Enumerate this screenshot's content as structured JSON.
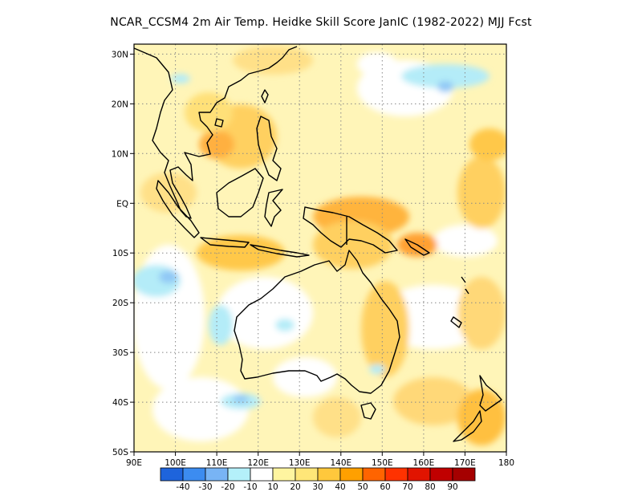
{
  "title": "NCAR_CCSM4  2m Air Temp. Heidke Skill Score JanIC (1982-2022) MJJ Fcst",
  "map": {
    "lon_range": [
      90,
      180
    ],
    "lat_range": [
      -50,
      32
    ],
    "lon_ticks": [
      "90E",
      "100E",
      "110E",
      "120E",
      "130E",
      "140E",
      "150E",
      "160E",
      "170E",
      "180"
    ],
    "lat_ticks": [
      "30N",
      "20N",
      "10N",
      "EQ",
      "10S",
      "20S",
      "30S",
      "40S",
      "50S"
    ],
    "grid": true
  },
  "colorbar": {
    "labels": [
      "-40",
      "-30",
      "-20",
      "-10",
      "10",
      "20",
      "30",
      "40",
      "50",
      "60",
      "70",
      "80",
      "90"
    ],
    "colors": [
      "#1e64dc",
      "#3c8cf0",
      "#78b4f5",
      "#b4f0fa",
      "#ffffff",
      "#fff5a0",
      "#ffe678",
      "#ffc83c",
      "#ffa000",
      "#ff6400",
      "#ff3200",
      "#e11400",
      "#c00000",
      "#a50000"
    ]
  },
  "regions": {
    "positive_strong": [
      "South China Sea / Philippines",
      "Java Sea",
      "New Guinea",
      "Coral Sea",
      "New Zealand"
    ],
    "negative": [
      "Indian Ocean 15S",
      "Western Australia coast",
      "Great Australian Bight",
      "North Pacific 25N"
    ]
  }
}
